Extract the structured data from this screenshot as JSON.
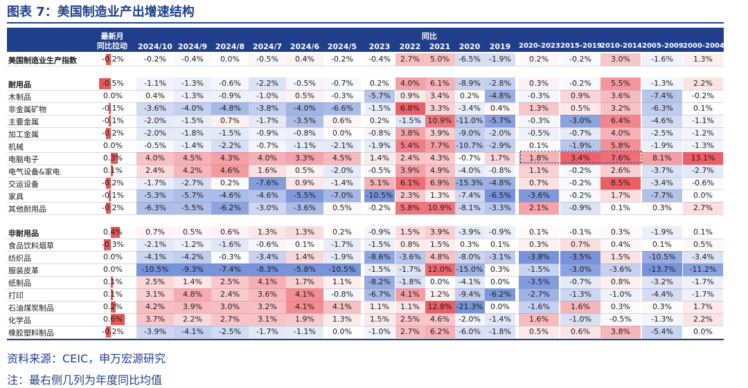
{
  "title": "图表 7：美国制造业产出增速结构",
  "source": "资料来源：CEIC，申万宏源研究",
  "note": "注：最右侧几列为年度同比均值",
  "colors": {
    "header_bg": "#1f3f8c",
    "positive": "#e23b3b",
    "negative": "#3a62c7",
    "title": "#1f3f8c"
  },
  "chart_data": {
    "type": "table",
    "group_headers": {
      "latest": "最新月同比拉动",
      "yoy": "同比"
    },
    "columns": [
      "2024/10",
      "2024/9",
      "2024/8",
      "2024/7",
      "2024/6",
      "2024/5",
      "2023",
      "2022",
      "2021",
      "2020",
      "2019",
      "2020-2023",
      "2015-2019",
      "2010-2014",
      "2005-2009",
      "2000-2004"
    ],
    "highlight": {
      "row": "电脑电子",
      "columns": [
        "2020-2023",
        "2015-2019",
        "2010-2014"
      ]
    },
    "rows": [
      {
        "label": "美国制造业生产指数",
        "bold": true,
        "contrib": "-0.2%",
        "values": [
          "-0.2%",
          "-0.4%",
          "0.0%",
          "-0.5%",
          "0.4%",
          "-0.2%",
          "-0.4%",
          "2.7%",
          "5.0%",
          "-6.5%",
          "-1.9%",
          "0.2%",
          "-0.2%",
          "3.0%",
          "-1.6%",
          "1.3%"
        ]
      },
      {
        "label": "耐用品",
        "bold": true,
        "contrib": "-0.5%",
        "values": [
          "-1.1%",
          "-1.3%",
          "-0.6%",
          "-2.2%",
          "-0.5%",
          "-0.7%",
          "0.2%",
          "4.0%",
          "6.1%",
          "-8.9%",
          "-2.8%",
          "0.3%",
          "-0.2%",
          "5.5%",
          "-1.3%",
          "2.2%"
        ]
      },
      {
        "label": "木制品",
        "contrib": "0.0%",
        "values": [
          "0.4%",
          "-1.3%",
          "-0.9%",
          "-1.0%",
          "0.5%",
          "-0.3%",
          "-5.7%",
          "0.9%",
          "3.4%",
          "0.2%",
          "-4.8%",
          "-0.3%",
          "0.9%",
          "3.6%",
          "-7.4%",
          "-0.2%"
        ]
      },
      {
        "label": "非金属矿物",
        "contrib": "-0.1%",
        "values": [
          "-3.6%",
          "-4.0%",
          "-4.8%",
          "-3.8%",
          "-4.0%",
          "-6.6%",
          "-1.5%",
          "6.8%",
          "3.3%",
          "-3.4%",
          "0.4%",
          "1.3%",
          "0.5%",
          "3.2%",
          "-6.3%",
          "0.1%"
        ]
      },
      {
        "label": "主要金属",
        "contrib": "-0.1%",
        "values": [
          "-2.0%",
          "-1.5%",
          "0.7%",
          "-1.7%",
          "-3.5%",
          "0.6%",
          "0.2%",
          "-1.5%",
          "10.9%",
          "-11.0%",
          "-5.7%",
          "-0.3%",
          "-3.0%",
          "6.4%",
          "-4.6%",
          "-1.1%"
        ]
      },
      {
        "label": "加工金属",
        "contrib": "-0.2%",
        "values": [
          "-2.0%",
          "-1.8%",
          "-1.5%",
          "-0.9%",
          "-0.8%",
          "0.0%",
          "-0.8%",
          "3.8%",
          "3.9%",
          "-9.0%",
          "-2.0%",
          "-0.5%",
          "-0.7%",
          "4.0%",
          "-2.5%",
          "-1.2%"
        ]
      },
      {
        "label": "机械",
        "contrib": "0.0%",
        "values": [
          "-0.5%",
          "-1.4%",
          "-2.2%",
          "-0.7%",
          "-1.1%",
          "-2.1%",
          "-1.9%",
          "5.4%",
          "7.7%",
          "-10.7%",
          "-2.9%",
          "0.1%",
          "-1.9%",
          "5.8%",
          "-1.9%",
          "-1.3%"
        ]
      },
      {
        "label": "电脑电子",
        "contrib": "0.3%",
        "values": [
          "4.0%",
          "4.5%",
          "4.3%",
          "4.0%",
          "3.3%",
          "4.5%",
          "1.4%",
          "2.4%",
          "4.3%",
          "-0.7%",
          "1.7%",
          "1.8%",
          "3.4%",
          "7.6%",
          "8.1%",
          "13.1%"
        ]
      },
      {
        "label": "电气设备&家电",
        "contrib": "0.1%",
        "values": [
          "2.4%",
          "4.2%",
          "4.6%",
          "1.6%",
          "0.5%",
          "-2.0%",
          "-0.5%",
          "3.9%",
          "4.9%",
          "-4.0%",
          "-0.8%",
          "1.1%",
          "-0.2%",
          "2.6%",
          "-3.7%",
          "-2.7%"
        ]
      },
      {
        "label": "交运设备",
        "contrib": "-0.2%",
        "values": [
          "-1.7%",
          "-2.7%",
          "0.2%",
          "-7.6%",
          "0.9%",
          "-1.4%",
          "5.1%",
          "6.1%",
          "6.9%",
          "-15.3%",
          "-4.8%",
          "0.7%",
          "-0.2%",
          "8.5%",
          "-3.4%",
          "-0.6%"
        ]
      },
      {
        "label": "家具",
        "contrib": "-0.1%",
        "values": [
          "-5.3%",
          "-5.7%",
          "-4.6%",
          "-4.6%",
          "-5.5%",
          "-7.0%",
          "-10.5%",
          "2.3%",
          "1.3%",
          "-7.4%",
          "-6.5%",
          "-3.6%",
          "-0.2%",
          "1.7%",
          "-7.7%",
          "0.0%"
        ]
      },
      {
        "label": "其他耐用品",
        "contrib": "-0.2%",
        "values": [
          "-6.3%",
          "-5.5%",
          "-6.2%",
          "-3.0%",
          "-3.6%",
          "0.5%",
          "-0.2%",
          "5.8%",
          "10.9%",
          "-8.1%",
          "-3.3%",
          "2.1%",
          "-0.9%",
          "0.1%",
          "0.3%",
          "2.7%"
        ]
      },
      {
        "label": "非耐用品",
        "bold": true,
        "contrib": "0.4%",
        "values": [
          "0.7%",
          "0.5%",
          "0.6%",
          "1.3%",
          "1.3%",
          "0.2%",
          "-0.9%",
          "1.5%",
          "3.9%",
          "-3.9%",
          "-0.9%",
          "0.1%",
          "-0.1%",
          "0.3%",
          "-1.9%",
          "0.1%"
        ]
      },
      {
        "label": "食品饮料烟草",
        "contrib": "-0.3%",
        "values": [
          "-2.1%",
          "-1.2%",
          "-1.6%",
          "-0.6%",
          "0.1%",
          "-1.7%",
          "-1.5%",
          "0.8%",
          "1.5%",
          "0.3%",
          "0.1%",
          "0.3%",
          "0.7%",
          "0.4%",
          "0.1%",
          "0.5%"
        ]
      },
      {
        "label": "纺织品",
        "contrib": "0.0%",
        "values": [
          "-4.1%",
          "-4.2%",
          "-0.3%",
          "-3.4%",
          "1.4%",
          "-1.9%",
          "-8.6%",
          "-3.6%",
          "4.8%",
          "-8.0%",
          "-3.1%",
          "-3.8%",
          "-3.5%",
          "1.5%",
          "-10.5%",
          "-3.4%"
        ]
      },
      {
        "label": "服装皮革",
        "contrib": "0.0%",
        "values": [
          "-10.5%",
          "-9.3%",
          "-7.4%",
          "-8.3%",
          "-5.8%",
          "-10.5%",
          "-1.5%",
          "-1.7%",
          "12.0%",
          "-15.0%",
          "0.3%",
          "-1.5%",
          "-3.0%",
          "-3.6%",
          "-13.7%",
          "-11.2%"
        ]
      },
      {
        "label": "纸制品",
        "contrib": "0.1%",
        "values": [
          "2.5%",
          "1.4%",
          "2.5%",
          "4.1%",
          "1.7%",
          "1.1%",
          "-8.2%",
          "-1.8%",
          "0.0%",
          "-4.1%",
          "0.0%",
          "-3.5%",
          "-0.7%",
          "0.8%",
          "-3.2%",
          "-1.7%"
        ]
      },
      {
        "label": "打印",
        "contrib": "0.1%",
        "values": [
          "3.1%",
          "4.8%",
          "2.4%",
          "3.6%",
          "4.1%",
          "-0.8%",
          "-6.7%",
          "4.1%",
          "1.2%",
          "-9.4%",
          "-6.2%",
          "-2.7%",
          "-1.3%",
          "-1.0%",
          "-4.4%",
          "-1.7%"
        ]
      },
      {
        "label": "石油煤炭制品",
        "contrib": "0.2%",
        "values": [
          "4.2%",
          "3.9%",
          "3.0%",
          "3.2%",
          "4.1%",
          "4.1%",
          "1.1%",
          "1.1%",
          "12.8%",
          "-21.3%",
          "0.0%",
          "-1.6%",
          "1.6%",
          "0.3%",
          "0.3%",
          "1.7%"
        ]
      },
      {
        "label": "化学品",
        "contrib": "0.6%",
        "values": [
          "3.7%",
          "2.2%",
          "2.7%",
          "3.1%",
          "1.9%",
          "1.3%",
          "1.5%",
          "2.5%",
          "4.6%",
          "-2.0%",
          "-1.4%",
          "1.6%",
          "-1.0%",
          "-0.5%",
          "-1.3%",
          "2.2%"
        ]
      },
      {
        "label": "橡胶塑料制品",
        "contrib": "-0.2%",
        "values": [
          "-3.9%",
          "-4.1%",
          "-2.5%",
          "-1.7%",
          "-1.1%",
          "0.0%",
          "-1.0%",
          "2.7%",
          "6.2%",
          "-6.0%",
          "-1.8%",
          "0.5%",
          "0.6%",
          "3.8%",
          "-5.4%",
          "0.0%"
        ]
      }
    ]
  }
}
